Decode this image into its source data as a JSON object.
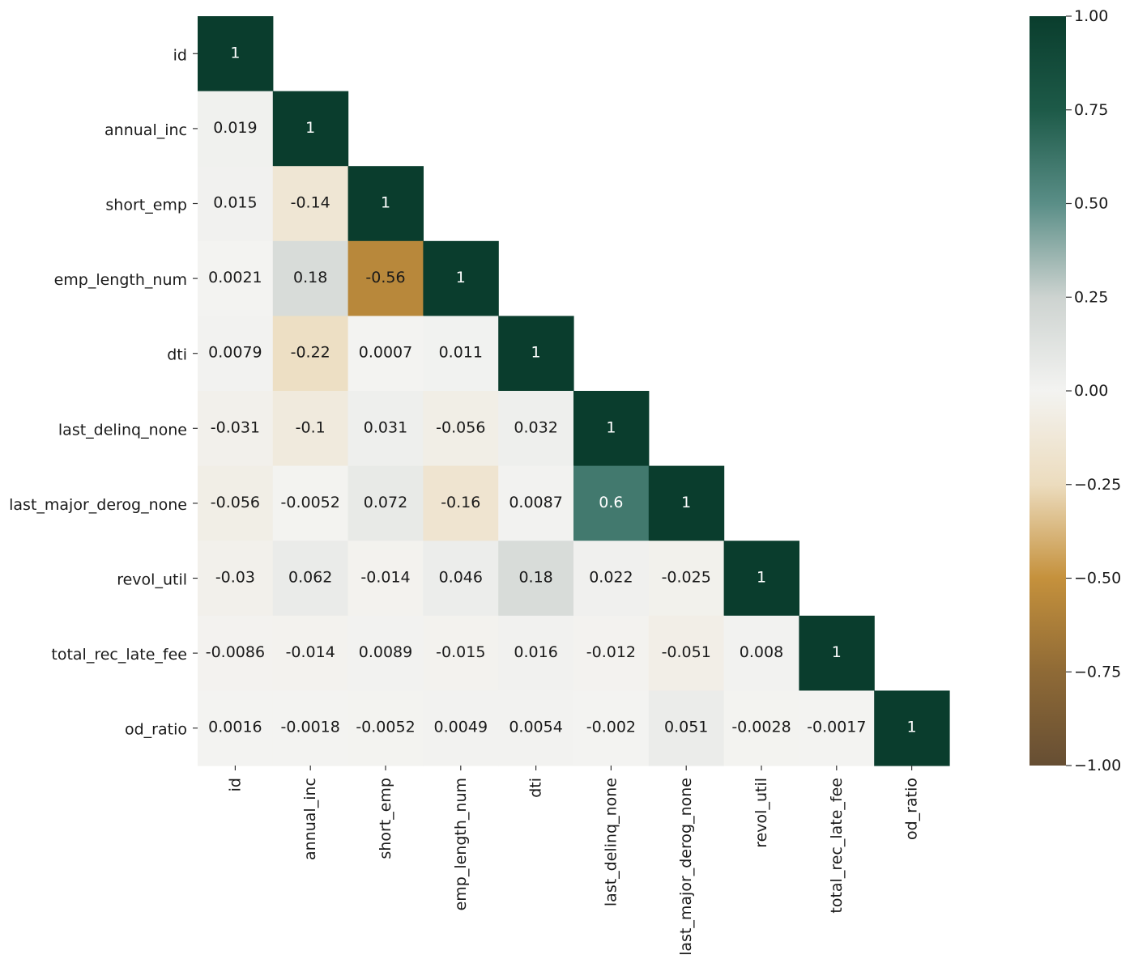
{
  "chart_data": {
    "type": "heatmap",
    "title": "",
    "xlabel": "",
    "ylabel": "",
    "mask": "upper-triangle",
    "variables": [
      "id",
      "annual_inc",
      "short_emp",
      "emp_length_num",
      "dti",
      "last_delinq_none",
      "last_major_derog_none",
      "revol_util",
      "total_rec_late_fee",
      "od_ratio"
    ],
    "rows": [
      {
        "label": "id",
        "values": [
          1
        ]
      },
      {
        "label": "annual_inc",
        "values": [
          0.019,
          1
        ]
      },
      {
        "label": "short_emp",
        "values": [
          0.015,
          -0.14,
          1
        ]
      },
      {
        "label": "emp_length_num",
        "values": [
          0.0021,
          0.18,
          -0.56,
          1
        ]
      },
      {
        "label": "dti",
        "values": [
          0.0079,
          -0.22,
          0.0007,
          0.011,
          1
        ]
      },
      {
        "label": "last_delinq_none",
        "values": [
          -0.031,
          -0.1,
          0.031,
          -0.056,
          0.032,
          1
        ]
      },
      {
        "label": "last_major_derog_none",
        "values": [
          -0.056,
          -0.0052,
          0.072,
          -0.16,
          0.0087,
          0.6,
          1
        ]
      },
      {
        "label": "revol_util",
        "values": [
          -0.03,
          0.062,
          -0.014,
          0.046,
          0.18,
          0.022,
          -0.025,
          1
        ]
      },
      {
        "label": "total_rec_late_fee",
        "values": [
          -0.0086,
          -0.014,
          0.0089,
          -0.015,
          0.016,
          -0.012,
          -0.051,
          0.008,
          1
        ]
      },
      {
        "label": "od_ratio",
        "values": [
          0.0016,
          -0.0018,
          -0.0052,
          0.0049,
          0.0054,
          -0.002,
          0.051,
          -0.0028,
          -0.0017,
          1
        ]
      }
    ],
    "cell_labels": [
      [
        "1"
      ],
      [
        "0.019",
        "1"
      ],
      [
        "0.015",
        "-0.14",
        "1"
      ],
      [
        "0.0021",
        "0.18",
        "-0.56",
        "1"
      ],
      [
        "0.0079",
        "-0.22",
        "0.0007",
        "0.011",
        "1"
      ],
      [
        "-0.031",
        "-0.1",
        "0.031",
        "-0.056",
        "0.032",
        "1"
      ],
      [
        "-0.056",
        "-0.0052",
        "0.072",
        "-0.16",
        "0.0087",
        "0.6",
        "1"
      ],
      [
        "-0.03",
        "0.062",
        "-0.014",
        "0.046",
        "0.18",
        "0.022",
        "-0.025",
        "1"
      ],
      [
        "-0.0086",
        "-0.014",
        "0.0089",
        "-0.015",
        "0.016",
        "-0.012",
        "-0.051",
        "0.008",
        "1"
      ],
      [
        "0.0016",
        "-0.0018",
        "-0.0052",
        "0.0049",
        "0.0054",
        "-0.002",
        "0.051",
        "-0.0028",
        "-0.0017",
        "1"
      ]
    ],
    "vmin": -1.0,
    "vmax": 1.0,
    "colormap": {
      "name": "BrBG-like",
      "stops": [
        {
          "value": -1.0,
          "color": "#664e33"
        },
        {
          "value": -0.75,
          "color": "#8f6a36"
        },
        {
          "value": -0.5,
          "color": "#c5913c"
        },
        {
          "value": -0.25,
          "color": "#ecdcbe"
        },
        {
          "value": 0.0,
          "color": "#f3f3f1"
        },
        {
          "value": 0.25,
          "color": "#cdd3d0"
        },
        {
          "value": 0.5,
          "color": "#5a8e87"
        },
        {
          "value": 0.75,
          "color": "#1d5a48"
        },
        {
          "value": 1.0,
          "color": "#0a3d2d"
        }
      ]
    },
    "colorbar": {
      "ticks": [
        1.0,
        0.75,
        0.5,
        0.25,
        0.0,
        -0.25,
        -0.5,
        -0.75,
        -1.0
      ],
      "tick_labels": [
        "1.00",
        "0.75",
        "0.50",
        "0.25",
        "0.00",
        "−0.25",
        "−0.50",
        "−0.75",
        "−1.00"
      ]
    },
    "grid": false,
    "legend_position": "right"
  }
}
